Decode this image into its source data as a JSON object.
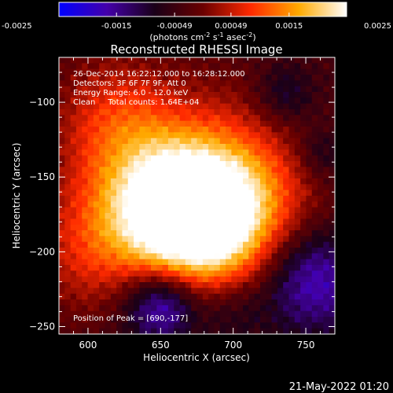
{
  "colorbar": {
    "tick_labels": [
      "-0.0025",
      "-0.0015",
      "-0.00049",
      "0.00049",
      "0.0015",
      "0.0025"
    ],
    "unit_label": "(photons cm",
    "unit_sup1": "-2",
    "unit_mid": " s",
    "unit_sup2": "-1",
    "unit_tail": " asec",
    "unit_sup3": "-2",
    "unit_close": ")",
    "range": [
      -0.0025,
      0.0025
    ],
    "colormap_stops": [
      "#0000ff",
      "#4400aa",
      "#1a0018",
      "#6a0000",
      "#ff2a00",
      "#ffaa00",
      "#ffffff"
    ]
  },
  "chart_data": {
    "type": "heatmap",
    "title": "Reconstructed RHESSI Image",
    "xlabel": "Heliocentric X (arcsec)",
    "ylabel": "Heliocentric Y (arcsec)",
    "xlim": [
      580,
      770
    ],
    "ylim": [
      -255,
      -70
    ],
    "x_ticks": [
      600,
      650,
      700,
      750
    ],
    "y_ticks": [
      -100,
      -150,
      -200,
      -250
    ],
    "x_tick_labels": [
      "600",
      "650",
      "700",
      "750"
    ],
    "y_tick_labels": [
      "−100",
      "−150",
      "−200",
      "−250"
    ],
    "peak_position": [
      690,
      -177
    ],
    "annotations": [
      "26-Dec-2014 16:22:12.000 to 16:28:12.000",
      "Detectors: 3F 6F 7F 9F, Att 0",
      "Energy Range: 6.0 - 12.0 keV",
      "Clean     Total counts: 1.64E+04"
    ],
    "peak_label": "Position of Peak = [690,-177]"
  },
  "footer": {
    "timestamp": "21-May-2022 01:20"
  }
}
